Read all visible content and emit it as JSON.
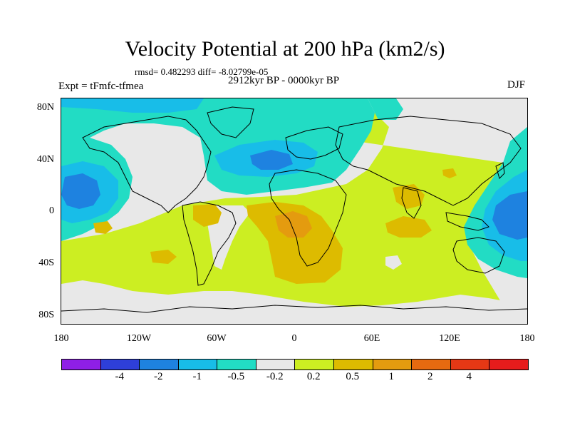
{
  "title": "Velocity Potential at 200 hPa (km2/s)",
  "stats": "rmsd= 0.482293 diff= -8.02799e-05",
  "period": "2912kyr BP - 0000kyr BP",
  "experiment": "Expt = tFmfc-tfmea",
  "season": "DJF",
  "lat_labels": [
    "80N",
    "40N",
    "0",
    "40S",
    "80S"
  ],
  "lon_labels": [
    "180",
    "120W",
    "60W",
    "0",
    "60E",
    "120E",
    "180"
  ],
  "colorbar": {
    "colors": [
      "#8f1fe6",
      "#2e3fd9",
      "#1e82e0",
      "#18bde8",
      "#22dcc4",
      "#e8e8e8",
      "#ccee22",
      "#ddbb00",
      "#e49b0f",
      "#e66a10",
      "#e53815",
      "#e61c1c"
    ],
    "labels": [
      "-4",
      "-2",
      "-1",
      "-0.5",
      "-0.2",
      "0.2",
      "0.5",
      "1",
      "2",
      "4"
    ]
  }
}
